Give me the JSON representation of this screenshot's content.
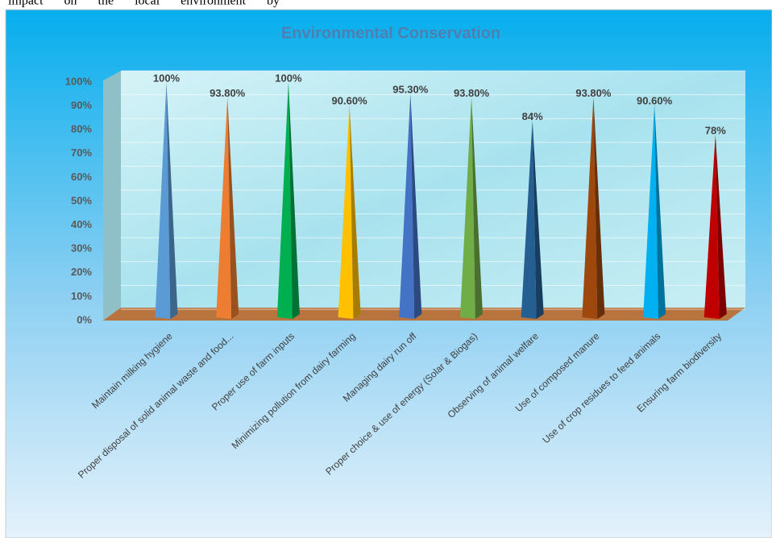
{
  "context_text": "impact on the local environment by",
  "chart_data": {
    "type": "pyramid-bar",
    "title": "Environmental Conservation",
    "categories": [
      "Maintain milking hygiene",
      "Proper disposal of solid animal waste and food...",
      "Proper use of farm inputs",
      "Minimizing pollution from dairy farming",
      "Managing dairy run off",
      "Proper choice & use of energy (Solar & Biogas)",
      "Observing of animal welfare",
      "Use of composed manure",
      "Use of crop residues to feed animals",
      "Ensuring farm biodiversity"
    ],
    "values": [
      100,
      93.8,
      100,
      90.6,
      95.3,
      93.8,
      84,
      93.8,
      90.6,
      78
    ],
    "value_labels": [
      "100%",
      "93.80%",
      "100%",
      "90.60%",
      "95.30%",
      "93.80%",
      "84%",
      "93.80%",
      "90.60%",
      "78%"
    ],
    "colors": [
      "#5b9bd5",
      "#ed7d31",
      "#00b050",
      "#ffc000",
      "#4472c4",
      "#70ad47",
      "#255e91",
      "#9e480e",
      "#00b0f0",
      "#c00000"
    ],
    "ylim": [
      0,
      100
    ],
    "yticks": [
      {
        "value": 0,
        "label": "0%"
      },
      {
        "value": 10,
        "label": "10%"
      },
      {
        "value": 20,
        "label": "20%"
      },
      {
        "value": 30,
        "label": "30%"
      },
      {
        "value": 40,
        "label": "40%"
      },
      {
        "value": 50,
        "label": "50%"
      },
      {
        "value": 60,
        "label": "60%"
      },
      {
        "value": 70,
        "label": "70%"
      },
      {
        "value": 80,
        "label": "80%"
      },
      {
        "value": 90,
        "label": "90%"
      },
      {
        "value": 100,
        "label": "100%"
      }
    ],
    "grid": true
  }
}
